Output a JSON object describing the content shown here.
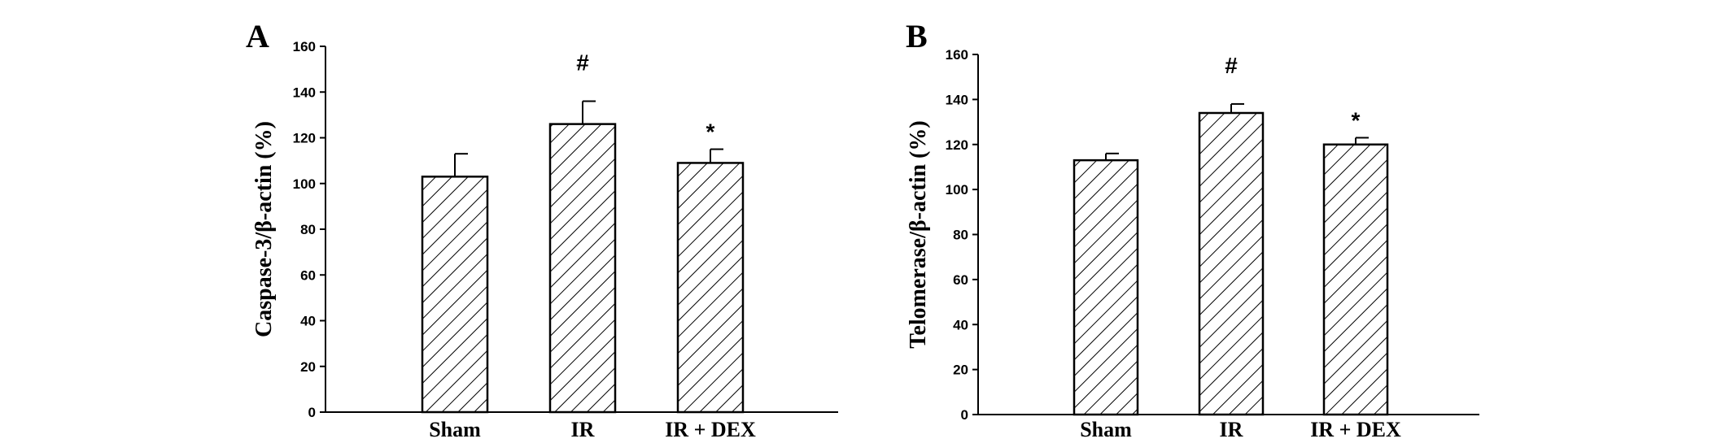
{
  "colors": {
    "ink": "#000000",
    "background": "#ffffff"
  },
  "chart_data": [
    {
      "panel": "A",
      "type": "bar",
      "categories": [
        "Sham",
        "IR",
        "IR + DEX"
      ],
      "values": [
        103,
        126,
        109
      ],
      "errors": [
        10,
        10,
        6
      ],
      "significance": [
        "",
        "#",
        "*"
      ],
      "xlabel": "",
      "ylabel": "Caspase-3/β-actin (%)",
      "ylim": [
        0,
        160
      ],
      "yticks": [
        0,
        20,
        40,
        60,
        80,
        100,
        120,
        140,
        160
      ],
      "bar_fill": "diagonal-hatch",
      "grid": false
    },
    {
      "panel": "B",
      "type": "bar",
      "categories": [
        "Sham",
        "IR",
        "IR + DEX"
      ],
      "values": [
        113,
        134,
        120
      ],
      "errors": [
        3,
        4,
        3
      ],
      "significance": [
        "",
        "#",
        "*"
      ],
      "xlabel": "",
      "ylabel": "Telomerase/β-actin (%)",
      "ylim": [
        0,
        160
      ],
      "yticks": [
        0,
        20,
        40,
        60,
        80,
        100,
        120,
        140,
        160
      ],
      "bar_fill": "diagonal-hatch",
      "grid": false
    }
  ]
}
